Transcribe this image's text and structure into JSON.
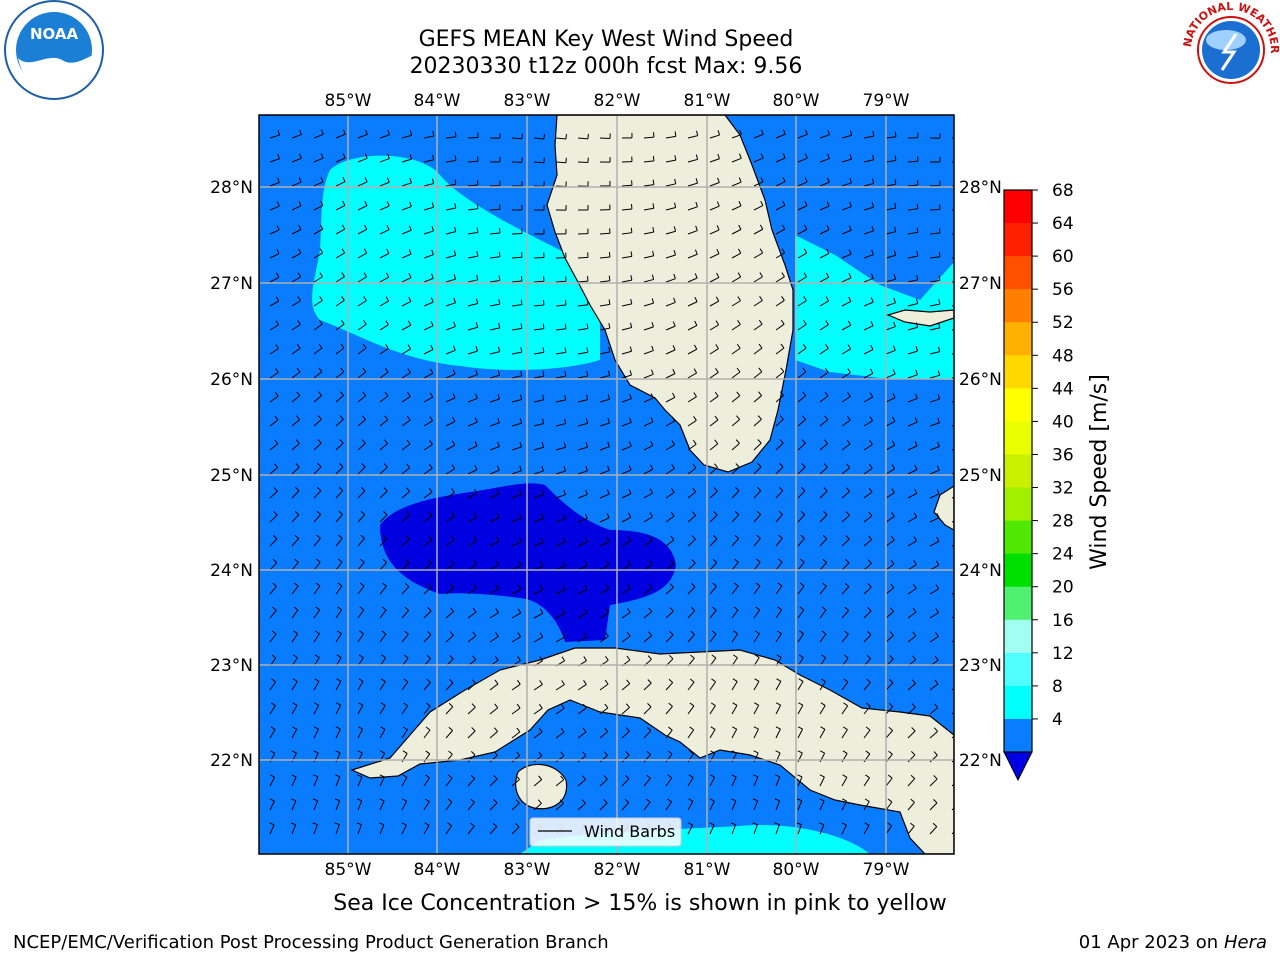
{
  "title": {
    "line1": "GEFS MEAN Key West Wind Speed",
    "line2": "20230330 t12z 000h fcst   Max: 9.56"
  },
  "map": {
    "lon_labels": [
      "85°W",
      "84°W",
      "83°W",
      "82°W",
      "81°W",
      "80°W",
      "79°W"
    ],
    "lat_labels": [
      "28°N",
      "27°N",
      "26°N",
      "25°N",
      "24°N",
      "23°N",
      "22°N"
    ],
    "legend_label": "Wind Barbs",
    "colors": {
      "ocean_4_8": "#0a7cff",
      "ocean_below_4": "#0000e0",
      "ocean_8_12": "#00ffff",
      "land": "#eeeedd",
      "grid": "#b0b0b0"
    }
  },
  "colorbar": {
    "label": "Wind Speed [m/s]",
    "ticks": [
      "68",
      "64",
      "60",
      "56",
      "52",
      "48",
      "44",
      "40",
      "36",
      "32",
      "28",
      "24",
      "20",
      "16",
      "12",
      "8",
      "4"
    ],
    "colors": [
      "#ff0000",
      "#ff2000",
      "#ff5000",
      "#ff8000",
      "#ffb000",
      "#ffd800",
      "#ffff00",
      "#e8ff00",
      "#c8f000",
      "#a0f000",
      "#50e800",
      "#00e000",
      "#50f070",
      "#a0fff0",
      "#50ffff",
      "#00ffff",
      "#0a7cff"
    ],
    "under_color": "#0000e0"
  },
  "subtitle": "Sea Ice Concentration > 15% is shown in pink to yellow",
  "footer": {
    "left": "NCEP/EMC/Verification Post Processing Product Generation Branch",
    "right_date": "01 Apr 2023 on ",
    "right_host": "Hera"
  },
  "logos": {
    "noaa_text": "NOAA",
    "nws_text": "NATIONAL WEATHER SERVICE"
  }
}
